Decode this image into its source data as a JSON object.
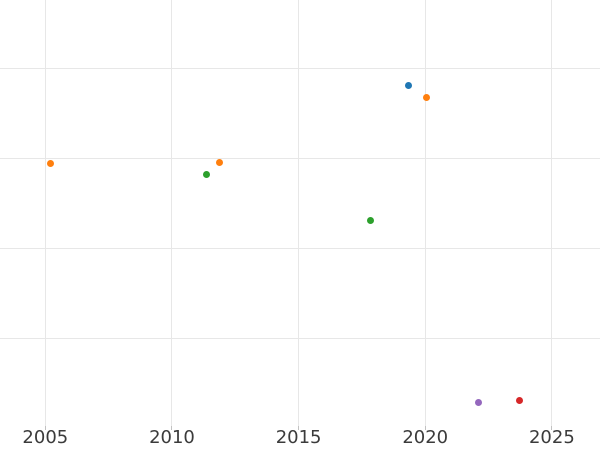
{
  "chart_data": {
    "type": "scatter",
    "title": "",
    "xlabel": "",
    "ylabel": "",
    "grid": true,
    "legend_position": "none",
    "x_tick_labels": [
      "2005",
      "2010",
      "2015",
      "2020",
      "2025"
    ],
    "x_tick_values": [
      2005,
      2010,
      2015,
      2020,
      2025
    ],
    "xlim": [
      2003.21,
      2026.9
    ],
    "ylim": [
      0,
      4.765
    ],
    "y_axis_note": "y-axis tick labels are cropped out of view; y values estimated in gridline units above the plot bottom",
    "y_gridline_values": [
      1,
      2,
      3,
      4
    ],
    "marker_diameter_px": 7,
    "series": [
      {
        "name": "blue",
        "color": "#1f77b4",
        "points": [
          {
            "x": 2019.33,
            "y": 3.81
          }
        ]
      },
      {
        "name": "orange",
        "color": "#ff7f0e",
        "points": [
          {
            "x": 2005.2,
            "y": 2.94
          },
          {
            "x": 2011.88,
            "y": 2.96
          },
          {
            "x": 2020.04,
            "y": 3.68
          }
        ]
      },
      {
        "name": "green",
        "color": "#2ca02c",
        "points": [
          {
            "x": 2011.38,
            "y": 2.82
          },
          {
            "x": 2017.83,
            "y": 2.31
          }
        ]
      },
      {
        "name": "red",
        "color": "#d62728",
        "points": [
          {
            "x": 2023.73,
            "y": 0.31
          }
        ]
      },
      {
        "name": "purple",
        "color": "#9467bd",
        "points": [
          {
            "x": 2022.11,
            "y": 0.28
          }
        ]
      }
    ],
    "style_colors": {
      "background": "#ffffff",
      "gridline": "#e7e7e7",
      "tick_mark": "#c2c2c2",
      "tick_label_text": "#3b3b3b"
    }
  }
}
